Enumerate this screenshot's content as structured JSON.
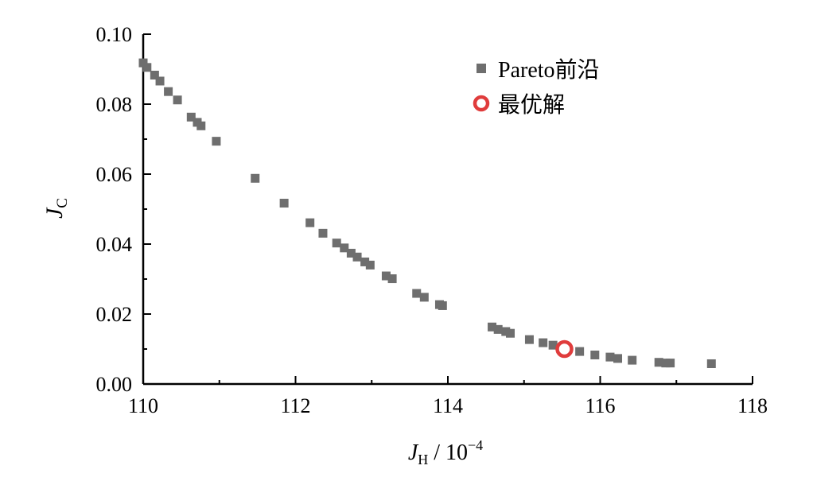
{
  "chart_data": {
    "type": "scatter",
    "xlabel": {
      "main": "J",
      "sub": "H",
      "suffix": " / 10",
      "sup": "−4"
    },
    "ylabel": {
      "main": "J",
      "sub": "C"
    },
    "xlim": [
      110,
      118
    ],
    "ylim": [
      0,
      0.1
    ],
    "x_ticks": [
      "110",
      "112",
      "114",
      "116",
      "118"
    ],
    "y_ticks": [
      "0.00",
      "0.02",
      "0.04",
      "0.06",
      "0.08",
      "0.10"
    ],
    "grid": false,
    "legend_position": "top-right",
    "series": [
      {
        "name": "Pareto前沿",
        "marker": "square",
        "color": "#6e6e6e",
        "points": [
          [
            110.0,
            0.0918
          ],
          [
            110.05,
            0.0905
          ],
          [
            110.15,
            0.0883
          ],
          [
            110.22,
            0.0866
          ],
          [
            110.33,
            0.0836
          ],
          [
            110.45,
            0.0812
          ],
          [
            110.63,
            0.0763
          ],
          [
            110.71,
            0.0748
          ],
          [
            110.76,
            0.0738
          ],
          [
            110.96,
            0.0694
          ],
          [
            111.47,
            0.0588
          ],
          [
            111.85,
            0.0517
          ],
          [
            112.19,
            0.0461
          ],
          [
            112.36,
            0.0431
          ],
          [
            112.54,
            0.0403
          ],
          [
            112.64,
            0.0389
          ],
          [
            112.73,
            0.0374
          ],
          [
            112.81,
            0.0363
          ],
          [
            112.91,
            0.0349
          ],
          [
            112.98,
            0.034
          ],
          [
            113.19,
            0.0309
          ],
          [
            113.27,
            0.0301
          ],
          [
            113.59,
            0.0259
          ],
          [
            113.69,
            0.0248
          ],
          [
            113.89,
            0.0227
          ],
          [
            113.93,
            0.0224
          ],
          [
            114.58,
            0.0163
          ],
          [
            114.66,
            0.0156
          ],
          [
            114.76,
            0.015
          ],
          [
            114.82,
            0.0145
          ],
          [
            115.07,
            0.0127
          ],
          [
            115.25,
            0.0118
          ],
          [
            115.38,
            0.0111
          ],
          [
            115.73,
            0.0093
          ],
          [
            115.93,
            0.0083
          ],
          [
            116.13,
            0.0077
          ],
          [
            116.23,
            0.0073
          ],
          [
            116.42,
            0.0068
          ],
          [
            116.77,
            0.0062
          ],
          [
            116.86,
            0.006
          ],
          [
            116.92,
            0.006
          ],
          [
            117.46,
            0.0058
          ]
        ]
      },
      {
        "name": "最优解",
        "marker": "circle-open",
        "color": "#e03c3c",
        "points": [
          [
            115.53,
            0.01
          ]
        ]
      }
    ]
  }
}
